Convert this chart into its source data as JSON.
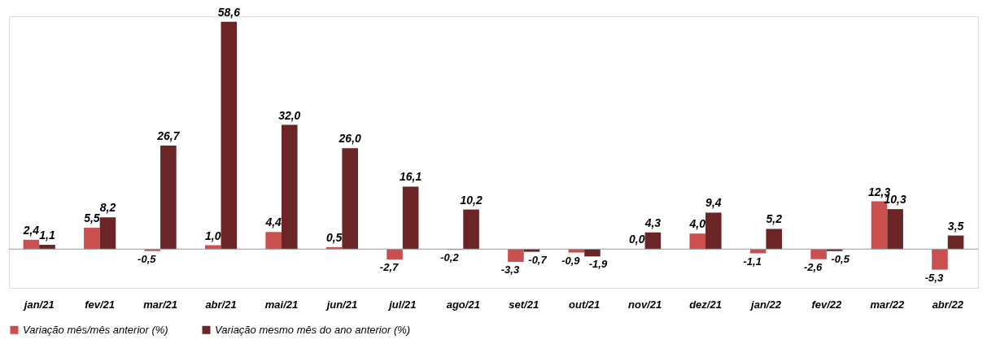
{
  "chart_data": {
    "type": "bar",
    "categories": [
      "jan/21",
      "fev/21",
      "mar/21",
      "abr/21",
      "mai/21",
      "jun/21",
      "jul/21",
      "ago/21",
      "set/21",
      "out/21",
      "nov/21",
      "dez/21",
      "jan/22",
      "fev/22",
      "mar/22",
      "abr/22"
    ],
    "series": [
      {
        "name": "Variação mês/mês anterior (%)",
        "color": "#c9504e",
        "values": [
          2.4,
          5.5,
          -0.5,
          1.0,
          4.4,
          0.5,
          -2.7,
          -0.2,
          -3.3,
          -0.9,
          0.0,
          4.0,
          -1.1,
          -2.6,
          12.3,
          -5.3
        ],
        "value_labels": [
          "2,4",
          "5,5",
          "-0,5",
          "1,0",
          "4,4",
          "0,5",
          "-2,7",
          "-0,2",
          "-3,3",
          "-0,9",
          "0,0",
          "4,0",
          "-1,1",
          "-2,6",
          "12,3",
          "-5,3"
        ]
      },
      {
        "name": "Variação mesmo mês do ano anterior (%)",
        "color": "#6b2526",
        "values": [
          1.1,
          8.2,
          26.7,
          58.6,
          32.0,
          26.0,
          16.1,
          10.2,
          -0.7,
          -1.9,
          4.3,
          9.4,
          5.2,
          -0.5,
          10.3,
          3.5
        ],
        "value_labels": [
          "1,1",
          "8,2",
          "26,7",
          "58,6",
          "32,0",
          "26,0",
          "16,1",
          "10,2",
          "-0,7",
          "-1,9",
          "4,3",
          "9,4",
          "5,2",
          "-0,5",
          "10,3",
          "3,5"
        ]
      }
    ],
    "legend": "bottom",
    "grid": false
  }
}
